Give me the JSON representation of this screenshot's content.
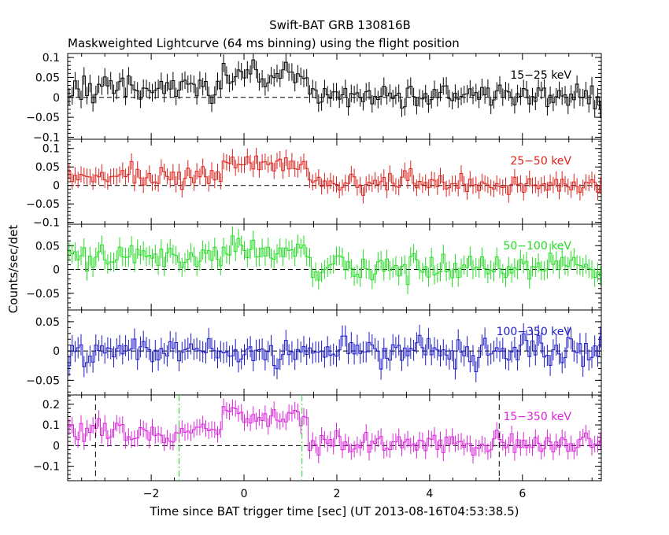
{
  "chart_data": {
    "type": "line",
    "title": "Swift-BAT GRB 130816B",
    "subtitle": "Maskweighted Lightcurve (64 ms binning) using the flight position",
    "xlabel": "Time since BAT trigger time [sec] (UT 2013-08-16T04:53:38.5)",
    "ylabel": "Counts/sec/det",
    "xlim": [
      -3.8,
      7.7
    ],
    "x_ticks": [
      -2,
      0,
      2,
      4,
      6
    ],
    "x_tick_labels": [
      "−2",
      "0",
      "2",
      "4",
      "6"
    ],
    "bin_width": 0.064,
    "panels": [
      {
        "band": "15−25 keV",
        "color": "#000000",
        "ylim": [
          -0.105,
          0.11
        ],
        "y_ticks": [
          0.1,
          0.05,
          0,
          -0.05,
          -0.1
        ],
        "y_tick_labels": [
          "0.1",
          "0.05",
          "0",
          "−0.05",
          "−0.1"
        ],
        "signal": [
          0.02,
          0.06
        ],
        "noise": 0.022,
        "err": 0.022
      },
      {
        "band": "25−50 keV",
        "color": "#e0201b",
        "ylim": [
          -0.105,
          0.125
        ],
        "y_ticks": [
          0.1,
          0.05,
          0,
          -0.05,
          -0.1
        ],
        "y_tick_labels": [
          "0.1",
          "0.05",
          "0",
          "−0.05",
          "−0.1"
        ],
        "signal": [
          0.025,
          0.06
        ],
        "noise": 0.022,
        "err": 0.022
      },
      {
        "band": "50−100 keV",
        "color": "#22dd22",
        "ylim": [
          -0.085,
          0.095
        ],
        "y_ticks": [
          0.05,
          0,
          -0.05
        ],
        "y_tick_labels": [
          "0.05",
          "0",
          "−0.05"
        ],
        "signal": [
          0.025,
          0.04
        ],
        "noise": 0.02,
        "err": 0.02
      },
      {
        "band": "100−350 keV",
        "color": "#1a1ac8",
        "ylim": [
          -0.075,
          0.07
        ],
        "y_ticks": [
          0.05,
          0,
          -0.05
        ],
        "y_tick_labels": [
          "0.05",
          "0",
          "−0.05"
        ],
        "signal": [
          0.0,
          0.0
        ],
        "noise": 0.018,
        "err": 0.018
      },
      {
        "band": "15−350 keV",
        "color": "#dd22dd",
        "ylim": [
          -0.17,
          0.245
        ],
        "y_ticks": [
          0.2,
          0.1,
          0,
          -0.1
        ],
        "y_tick_labels": [
          "0.2",
          "0.1",
          "0",
          "−0.1"
        ],
        "signal": [
          0.06,
          0.14
        ],
        "noise": 0.04,
        "err": 0.04
      }
    ],
    "markers": {
      "black_dashed": [
        -3.2,
        5.5
      ],
      "green_dashdot": [
        -1.4,
        1.25
      ]
    },
    "grid": false,
    "zero_line": "dashed"
  }
}
